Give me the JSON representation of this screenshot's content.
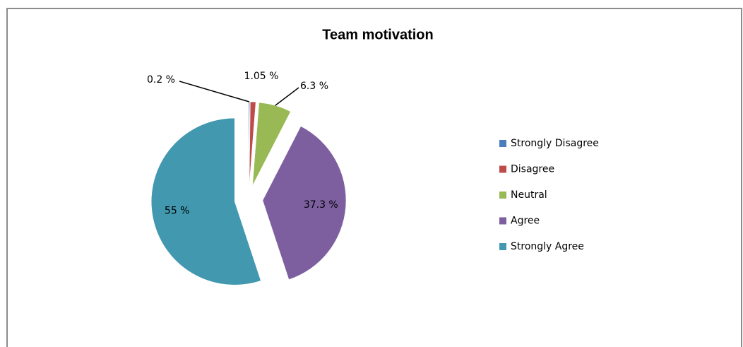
{
  "chart_data": {
    "type": "pie",
    "title": "Team motivation",
    "categories": [
      "Strongly Disagree",
      "Disagree",
      "Neutral",
      "Agree",
      "Strongly Agree"
    ],
    "values": [
      0.2,
      1.05,
      6.3,
      37.3,
      55
    ],
    "value_labels": [
      "0.2 %",
      "1.05 %",
      "6.3 %",
      "37.3 %",
      "55 %"
    ],
    "colors": [
      "#4a7ebb",
      "#be4b48",
      "#98b954",
      "#7d5fa0",
      "#4198af"
    ],
    "legend": "right"
  }
}
